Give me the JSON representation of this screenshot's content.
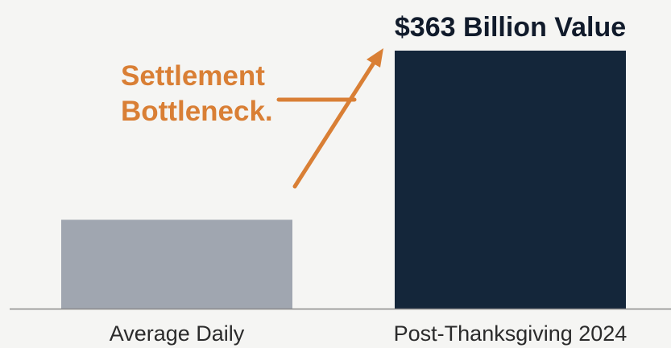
{
  "chart_data": {
    "type": "bar",
    "title": "",
    "xlabel": "",
    "ylabel": "",
    "categories": [
      "Average Daily",
      "Post-Thanksgiving 2024"
    ],
    "values": [
      125,
      363
    ],
    "ylim": [
      0,
      400
    ],
    "value_labels": [
      "",
      "$363 Billion Value"
    ],
    "bar_colors": [
      "#a0a6b0",
      "#14263a"
    ],
    "annotation": {
      "lines": [
        "Settlement",
        "Bottleneck."
      ],
      "color": "#d97f35",
      "arrow": "from Average Daily bar to Post-Thanksgiving 2024 bar"
    },
    "grid": false,
    "legend": "none",
    "baseline_color": "#888888"
  }
}
